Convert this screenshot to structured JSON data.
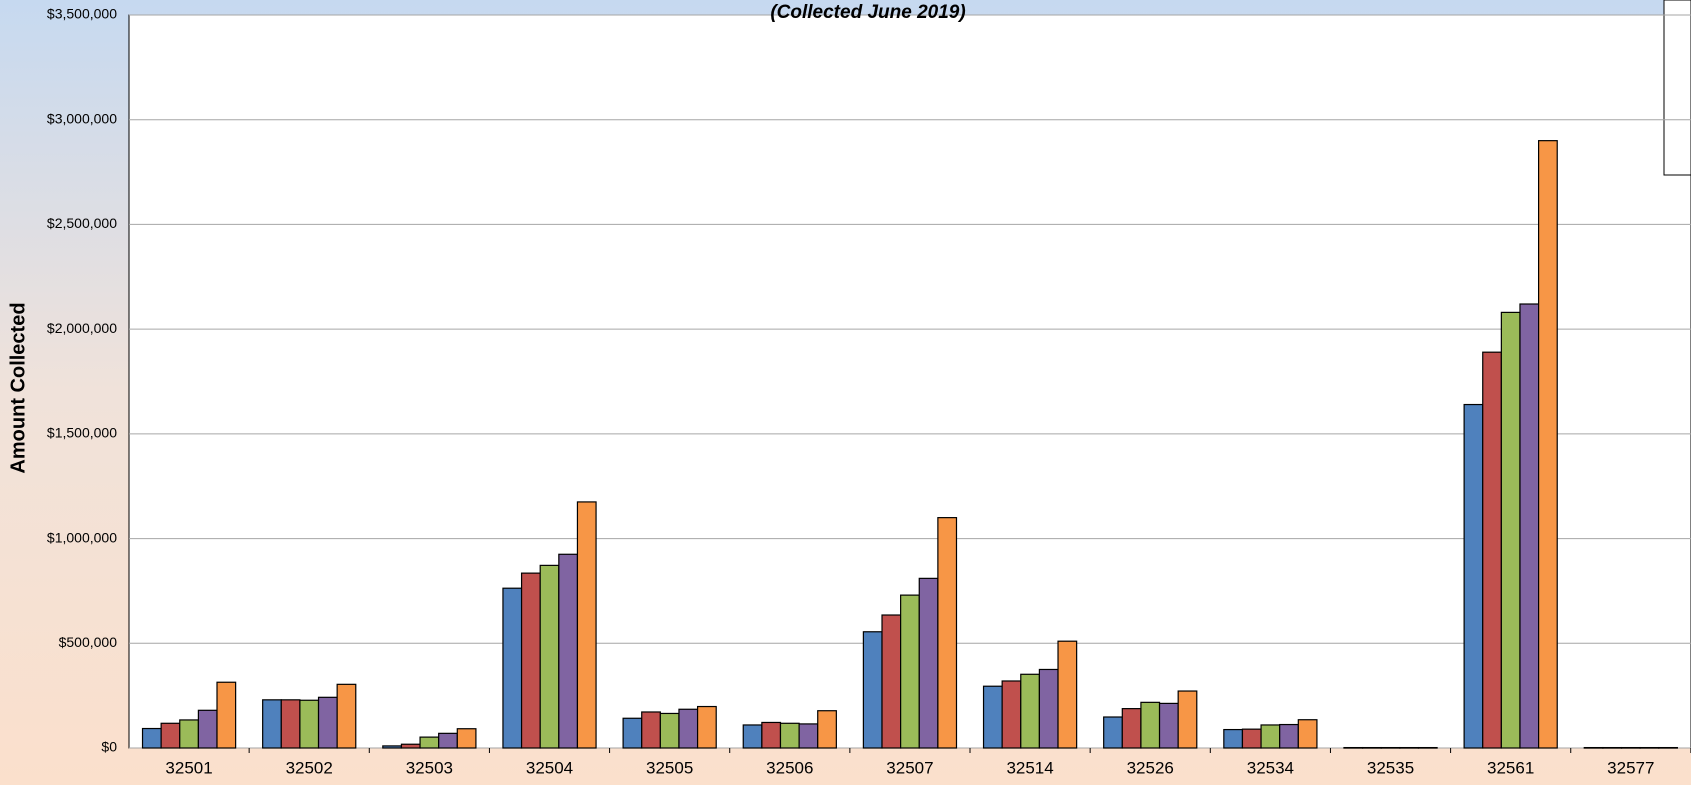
{
  "chart_data": {
    "type": "bar",
    "title": "(Collected June 2019)",
    "y_label": "Amount Collected",
    "categories": [
      "32501",
      "32502",
      "32503",
      "32504",
      "32505",
      "32506",
      "32507",
      "32514",
      "32526",
      "32534",
      "32535",
      "32561",
      "32577"
    ],
    "series": [
      {
        "color": "#4f81bd",
        "values": [
          93000,
          230000,
          10000,
          763000,
          142000,
          110000,
          555000,
          295000,
          148000,
          88000,
          2000,
          1640000,
          2000
        ]
      },
      {
        "color": "#c0504d",
        "values": [
          118000,
          230000,
          18000,
          835000,
          172000,
          122000,
          635000,
          320000,
          188000,
          90000,
          2000,
          1890000,
          2000
        ]
      },
      {
        "color": "#9bbb59",
        "values": [
          134000,
          228000,
          52000,
          872000,
          165000,
          118000,
          730000,
          352000,
          218000,
          110000,
          2000,
          2080000,
          2000
        ]
      },
      {
        "color": "#8064a2",
        "values": [
          180000,
          242000,
          70000,
          925000,
          185000,
          115000,
          810000,
          375000,
          213000,
          112000,
          2000,
          2120000,
          2000
        ]
      },
      {
        "color": "#f79646",
        "values": [
          314000,
          304000,
          92000,
          1175000,
          198000,
          178000,
          1100000,
          510000,
          272000,
          135000,
          2000,
          2900000,
          2000
        ]
      }
    ],
    "ylim": [
      0,
      3500000
    ],
    "yticks": [
      {
        "value": 0,
        "label": "$0"
      },
      {
        "value": 500000,
        "label": "$500,000"
      },
      {
        "value": 1000000,
        "label": "$1,000,000"
      },
      {
        "value": 1500000,
        "label": "$1,500,000"
      },
      {
        "value": 2000000,
        "label": "$2,000,000"
      },
      {
        "value": 2500000,
        "label": "$2,500,000"
      },
      {
        "value": 3000000,
        "label": "$3,000,000"
      },
      {
        "value": 3500000,
        "label": "$3,500,000"
      }
    ],
    "grid": true
  }
}
